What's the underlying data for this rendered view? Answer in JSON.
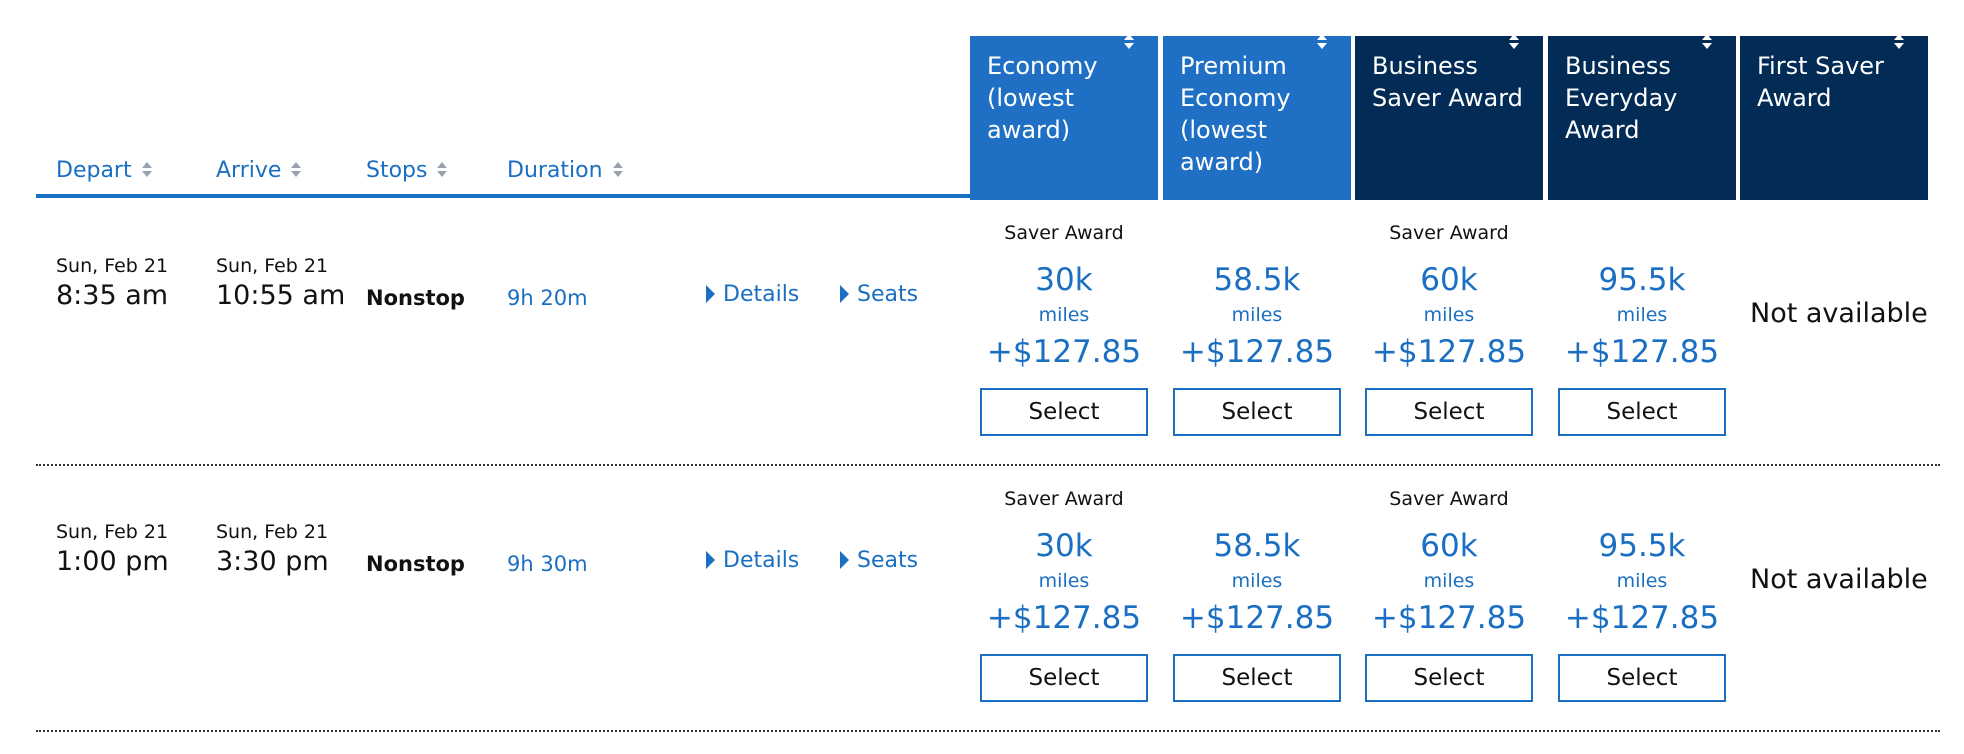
{
  "columns": {
    "depart": "Depart",
    "arrive": "Arrive",
    "stops": "Stops",
    "duration": "Duration"
  },
  "fare_headers": [
    {
      "label": "Economy\n(lowest\naward)",
      "color": "#1f6fc4"
    },
    {
      "label": "Premium\nEconomy\n(lowest\naward)",
      "color": "#1f6fc4"
    },
    {
      "label": "Business\nSaver Award",
      "color": "#022b55"
    },
    {
      "label": "Business\nEveryday\nAward",
      "color": "#022b55"
    },
    {
      "label": "First Saver\nAward",
      "color": "#022b55"
    }
  ],
  "flights": [
    {
      "depart_date": "Sun, Feb 21",
      "depart_time": "8:35 am",
      "arrive_date": "Sun, Feb 21",
      "arrive_time": "10:55 am",
      "stops": "Nonstop",
      "duration": "9h 20m",
      "details_label": "Details",
      "seats_label": "Seats",
      "fares": [
        {
          "badge": "Saver Award",
          "miles": "30k",
          "miles_unit": "miles",
          "price": "+$127.85",
          "select": "Select"
        },
        {
          "badge": "",
          "miles": "58.5k",
          "miles_unit": "miles",
          "price": "+$127.85",
          "select": "Select"
        },
        {
          "badge": "Saver Award",
          "miles": "60k",
          "miles_unit": "miles",
          "price": "+$127.85",
          "select": "Select"
        },
        {
          "badge": "",
          "miles": "95.5k",
          "miles_unit": "miles",
          "price": "+$127.85",
          "select": "Select"
        }
      ],
      "first_saver": "Not available"
    },
    {
      "depart_date": "Sun, Feb 21",
      "depart_time": "1:00 pm",
      "arrive_date": "Sun, Feb 21",
      "arrive_time": "3:30 pm",
      "stops": "Nonstop",
      "duration": "9h 30m",
      "details_label": "Details",
      "seats_label": "Seats",
      "fares": [
        {
          "badge": "Saver Award",
          "miles": "30k",
          "miles_unit": "miles",
          "price": "+$127.85",
          "select": "Select"
        },
        {
          "badge": "",
          "miles": "58.5k",
          "miles_unit": "miles",
          "price": "+$127.85",
          "select": "Select"
        },
        {
          "badge": "Saver Award",
          "miles": "60k",
          "miles_unit": "miles",
          "price": "+$127.85",
          "select": "Select"
        },
        {
          "badge": "",
          "miles": "95.5k",
          "miles_unit": "miles",
          "price": "+$127.85",
          "select": "Select"
        }
      ],
      "first_saver": "Not available"
    }
  ],
  "colors": {
    "link_blue": "#1a6fc2",
    "economy_header": "#1f6fc4",
    "business_header": "#022b55"
  }
}
